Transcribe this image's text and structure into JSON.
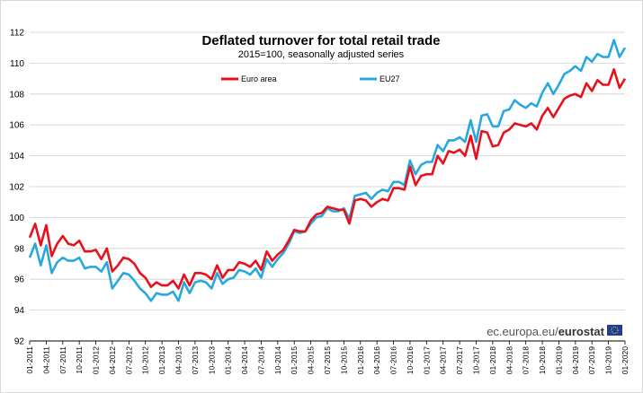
{
  "chart_data": {
    "type": "line",
    "title": "Deflated turnover for total retail trade",
    "subtitle": "2015=100, seasonally adjusted series",
    "ylim": [
      92,
      112
    ],
    "yticks": [
      92,
      94,
      96,
      98,
      100,
      102,
      104,
      106,
      108,
      110,
      112
    ],
    "grid": true,
    "legend_position": "top",
    "x_labels": [
      "01-2011",
      "04-2011",
      "07-2011",
      "10-2011",
      "01-2012",
      "04-2012",
      "07-2012",
      "10-2012",
      "01-2013",
      "04-2013",
      "07-2013",
      "10-2013",
      "01-2014",
      "04-2014",
      "07-2014",
      "10-2014",
      "01-2015",
      "04-2015",
      "07-2015",
      "10-2015",
      "01-2016",
      "04-2016",
      "07-2016",
      "10-2016",
      "01-2017",
      "04-2017",
      "07-2017",
      "10-2017",
      "01-2018",
      "04-2018",
      "07-2018",
      "10-2018",
      "01-2019",
      "04-2019",
      "07-2019",
      "10-2019",
      "01-2020"
    ],
    "series": [
      {
        "name": "Euro area",
        "color": "#e8101b",
        "values": [
          98.7,
          99.6,
          98.2,
          99.5,
          97.5,
          98.3,
          98.8,
          98.3,
          98.2,
          98.5,
          97.8,
          97.8,
          97.9,
          97.3,
          98.0,
          96.5,
          96.9,
          97.4,
          97.3,
          97.0,
          96.4,
          96.1,
          95.5,
          95.8,
          95.6,
          95.6,
          95.9,
          95.4,
          96.3,
          95.6,
          96.4,
          96.4,
          96.3,
          96.0,
          96.9,
          96.1,
          96.6,
          96.6,
          97.1,
          97.0,
          96.8,
          97.2,
          96.6,
          97.8,
          97.2,
          97.6,
          97.9,
          98.5,
          99.2,
          99.1,
          99.1,
          99.8,
          100.2,
          100.3,
          100.7,
          100.6,
          100.5,
          100.5,
          99.6,
          101.1,
          101.2,
          101.1,
          100.7,
          101.0,
          101.2,
          101.1,
          101.9,
          101.9,
          101.8,
          103.3,
          102.1,
          102.7,
          102.8,
          102.8,
          104.0,
          103.5,
          104.3,
          104.2,
          104.4,
          104.0,
          105.3,
          103.8,
          105.6,
          105.5,
          104.6,
          104.7,
          105.5,
          105.7,
          106.1,
          106.0,
          105.9,
          106.1,
          105.7,
          106.6,
          107.1,
          106.5,
          107.1,
          107.7,
          107.9,
          108.0,
          107.8,
          108.7,
          108.2,
          108.9,
          108.6,
          108.6,
          109.6,
          108.4,
          109.0
        ]
      },
      {
        "name": "EU27",
        "color": "#29a8e0",
        "values": [
          97.4,
          98.3,
          96.9,
          98.2,
          96.4,
          97.1,
          97.4,
          97.2,
          97.2,
          97.4,
          96.7,
          96.8,
          96.8,
          96.5,
          97.1,
          95.4,
          95.9,
          96.4,
          96.3,
          95.9,
          95.4,
          95.1,
          94.6,
          95.1,
          95.0,
          95.0,
          95.2,
          94.6,
          95.8,
          95.1,
          95.8,
          95.9,
          95.8,
          95.4,
          96.4,
          95.7,
          96.0,
          96.1,
          96.6,
          96.5,
          96.3,
          96.7,
          96.1,
          97.3,
          96.8,
          97.3,
          97.7,
          98.3,
          99.1,
          99.0,
          99.1,
          99.6,
          100.0,
          100.1,
          100.6,
          100.4,
          100.4,
          100.6,
          99.9,
          101.4,
          101.5,
          101.6,
          101.2,
          101.6,
          101.8,
          101.7,
          102.3,
          102.3,
          102.1,
          103.7,
          102.8,
          103.4,
          103.6,
          103.6,
          104.7,
          104.3,
          105.0,
          105.0,
          105.2,
          104.9,
          106.3,
          104.9,
          106.6,
          106.7,
          105.9,
          105.9,
          106.9,
          107.0,
          107.6,
          107.3,
          107.1,
          107.4,
          107.2,
          108.1,
          108.7,
          108.0,
          108.6,
          109.3,
          109.5,
          109.8,
          109.5,
          110.4,
          110.1,
          110.6,
          110.4,
          110.4,
          111.5,
          110.4,
          111.0
        ]
      }
    ]
  },
  "source_credit": {
    "site": "ec.europa.eu/",
    "brand": "eurostat"
  }
}
